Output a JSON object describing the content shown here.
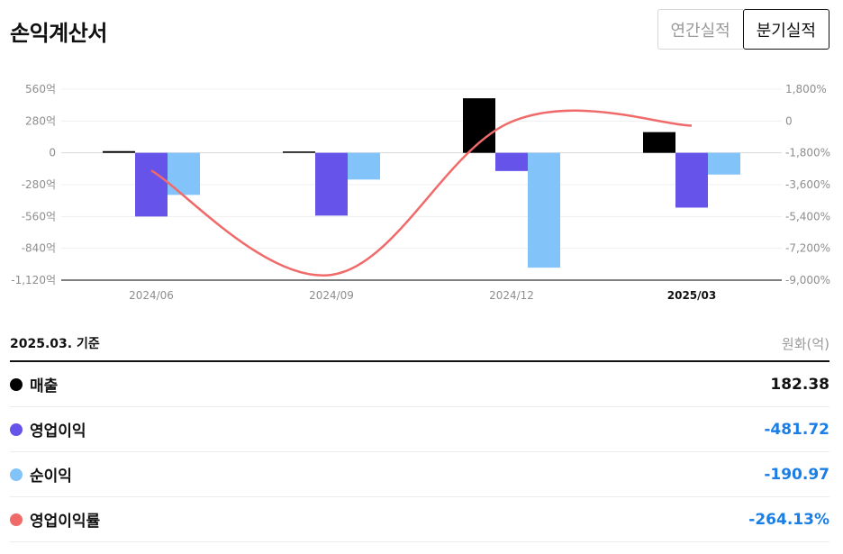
{
  "header": {
    "title": "손익계산서"
  },
  "toggle": {
    "annual_label": "연간실적",
    "quarterly_label": "분기실적"
  },
  "chart_data": {
    "type": "bar",
    "categories": [
      "2024/06",
      "2024/09",
      "2024/12",
      "2025/03"
    ],
    "highlight_category": "2025/03",
    "series": [
      {
        "name": "매출",
        "axis": "left",
        "kind": "bar",
        "color": "#000000",
        "values": [
          15,
          8,
          480,
          182.38
        ]
      },
      {
        "name": "영업이익",
        "axis": "left",
        "kind": "bar",
        "color": "#6553ea",
        "values": [
          -560,
          -552,
          -160,
          -481.72
        ]
      },
      {
        "name": "순이익",
        "axis": "left",
        "kind": "bar",
        "color": "#82c4f9",
        "values": [
          -370,
          -235,
          -1010,
          -190.97
        ]
      },
      {
        "name": "영업이익률",
        "axis": "right",
        "kind": "line",
        "color": "#f06a6a",
        "values": [
          -2800,
          -8700,
          -40,
          -264.13
        ]
      }
    ],
    "y_left": {
      "ticks": [
        "560억",
        "280억",
        "0",
        "-280억",
        "-560억",
        "-840억",
        "-1,120억"
      ],
      "range": [
        -1120,
        560
      ]
    },
    "y_right": {
      "ticks": [
        "1,800%",
        "0",
        "-1,800%",
        "-3,600%",
        "-5,400%",
        "-7,200%",
        "-9,000%"
      ],
      "range": [
        -9000,
        1800
      ]
    },
    "grid": true
  },
  "legend": {
    "basis_label": "2025.03. 기준",
    "unit_label": "원화(억)",
    "items": [
      {
        "name": "매출",
        "value": "182.38",
        "color": "#000000",
        "value_color": "#111111"
      },
      {
        "name": "영업이익",
        "value": "-481.72",
        "color": "#6553ea",
        "value_color": "#1a7ee6"
      },
      {
        "name": "순이익",
        "value": "-190.97",
        "color": "#82c4f9",
        "value_color": "#1a7ee6"
      },
      {
        "name": "영업이익률",
        "value": "-264.13%",
        "color": "#f06a6a",
        "value_color": "#1a7ee6"
      }
    ]
  }
}
